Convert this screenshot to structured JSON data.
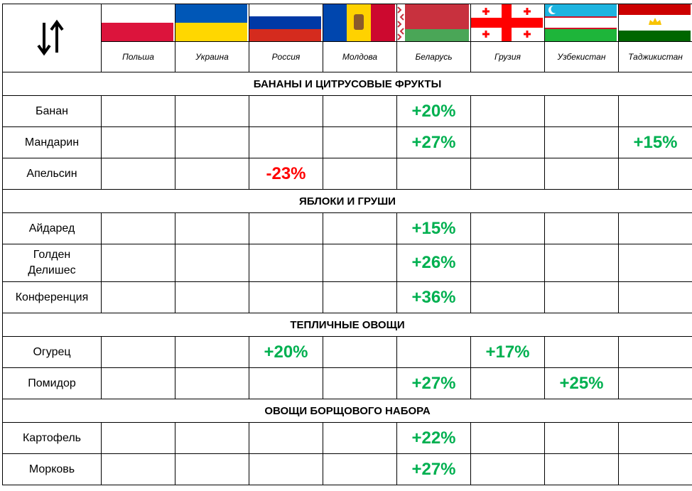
{
  "header": {
    "countries": [
      "Польша",
      "Украина",
      "Россия",
      "Молдова",
      "Беларусь",
      "Грузия",
      "Узбекистан",
      "Таджикистан"
    ]
  },
  "positive_color": "#00b050",
  "negative_color": "#ff0000",
  "sections": [
    {
      "title": "БАНАНЫ И ЦИТРУСОВЫЕ ФРУКТЫ",
      "rows": [
        {
          "label": "Банан",
          "cells": [
            null,
            null,
            null,
            null,
            "+20%",
            null,
            null,
            null
          ]
        },
        {
          "label": "Мандарин",
          "cells": [
            null,
            null,
            null,
            null,
            "+27%",
            null,
            null,
            "+15%"
          ]
        },
        {
          "label": "Апельсин",
          "cells": [
            null,
            null,
            "-23%",
            null,
            null,
            null,
            null,
            null
          ]
        }
      ]
    },
    {
      "title": "ЯБЛОКИ И ГРУШИ",
      "rows": [
        {
          "label": "Айдаред",
          "cells": [
            null,
            null,
            null,
            null,
            "+15%",
            null,
            null,
            null
          ]
        },
        {
          "label": "Голден\nДелишес",
          "cells": [
            null,
            null,
            null,
            null,
            "+26%",
            null,
            null,
            null
          ]
        },
        {
          "label": "Конференция",
          "cells": [
            null,
            null,
            null,
            null,
            "+36%",
            null,
            null,
            null
          ]
        }
      ]
    },
    {
      "title": "ТЕПЛИЧНЫЕ ОВОЩИ",
      "rows": [
        {
          "label": "Огурец",
          "cells": [
            null,
            null,
            "+20%",
            null,
            null,
            "+17%",
            null,
            null
          ]
        },
        {
          "label": "Помидор",
          "cells": [
            null,
            null,
            null,
            null,
            "+27%",
            null,
            "+25%",
            null
          ]
        }
      ]
    },
    {
      "title": "ОВОЩИ БОРЩОВОГО НАБОРА",
      "rows": [
        {
          "label": "Картофель",
          "cells": [
            null,
            null,
            null,
            null,
            "+22%",
            null,
            null,
            null
          ]
        },
        {
          "label": "Морковь",
          "cells": [
            null,
            null,
            null,
            null,
            "+27%",
            null,
            null,
            null
          ]
        }
      ]
    }
  ]
}
